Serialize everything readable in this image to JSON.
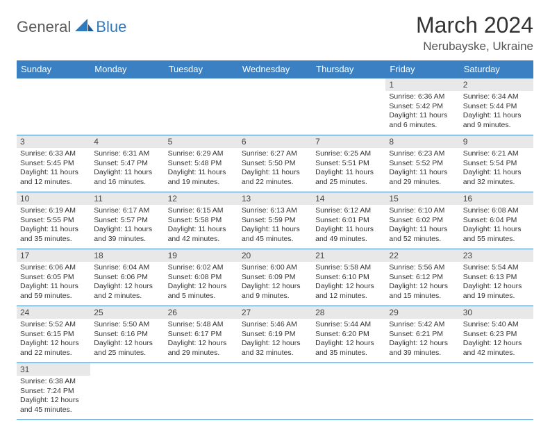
{
  "brand": {
    "part1": "General",
    "part2": "Blue"
  },
  "title": "March 2024",
  "location": "Nerubayske, Ukraine",
  "header_bg": "#3a80c3",
  "header_fg": "#ffffff",
  "daynum_bg": "#e8e8e8",
  "border_color": "#3a80c3",
  "weekdays": [
    "Sunday",
    "Monday",
    "Tuesday",
    "Wednesday",
    "Thursday",
    "Friday",
    "Saturday"
  ],
  "weeks": [
    [
      null,
      null,
      null,
      null,
      null,
      {
        "n": "1",
        "sr": "Sunrise: 6:36 AM",
        "ss": "Sunset: 5:42 PM",
        "dl1": "Daylight: 11 hours",
        "dl2": "and 6 minutes."
      },
      {
        "n": "2",
        "sr": "Sunrise: 6:34 AM",
        "ss": "Sunset: 5:44 PM",
        "dl1": "Daylight: 11 hours",
        "dl2": "and 9 minutes."
      }
    ],
    [
      {
        "n": "3",
        "sr": "Sunrise: 6:33 AM",
        "ss": "Sunset: 5:45 PM",
        "dl1": "Daylight: 11 hours",
        "dl2": "and 12 minutes."
      },
      {
        "n": "4",
        "sr": "Sunrise: 6:31 AM",
        "ss": "Sunset: 5:47 PM",
        "dl1": "Daylight: 11 hours",
        "dl2": "and 16 minutes."
      },
      {
        "n": "5",
        "sr": "Sunrise: 6:29 AM",
        "ss": "Sunset: 5:48 PM",
        "dl1": "Daylight: 11 hours",
        "dl2": "and 19 minutes."
      },
      {
        "n": "6",
        "sr": "Sunrise: 6:27 AM",
        "ss": "Sunset: 5:50 PM",
        "dl1": "Daylight: 11 hours",
        "dl2": "and 22 minutes."
      },
      {
        "n": "7",
        "sr": "Sunrise: 6:25 AM",
        "ss": "Sunset: 5:51 PM",
        "dl1": "Daylight: 11 hours",
        "dl2": "and 25 minutes."
      },
      {
        "n": "8",
        "sr": "Sunrise: 6:23 AM",
        "ss": "Sunset: 5:52 PM",
        "dl1": "Daylight: 11 hours",
        "dl2": "and 29 minutes."
      },
      {
        "n": "9",
        "sr": "Sunrise: 6:21 AM",
        "ss": "Sunset: 5:54 PM",
        "dl1": "Daylight: 11 hours",
        "dl2": "and 32 minutes."
      }
    ],
    [
      {
        "n": "10",
        "sr": "Sunrise: 6:19 AM",
        "ss": "Sunset: 5:55 PM",
        "dl1": "Daylight: 11 hours",
        "dl2": "and 35 minutes."
      },
      {
        "n": "11",
        "sr": "Sunrise: 6:17 AM",
        "ss": "Sunset: 5:57 PM",
        "dl1": "Daylight: 11 hours",
        "dl2": "and 39 minutes."
      },
      {
        "n": "12",
        "sr": "Sunrise: 6:15 AM",
        "ss": "Sunset: 5:58 PM",
        "dl1": "Daylight: 11 hours",
        "dl2": "and 42 minutes."
      },
      {
        "n": "13",
        "sr": "Sunrise: 6:13 AM",
        "ss": "Sunset: 5:59 PM",
        "dl1": "Daylight: 11 hours",
        "dl2": "and 45 minutes."
      },
      {
        "n": "14",
        "sr": "Sunrise: 6:12 AM",
        "ss": "Sunset: 6:01 PM",
        "dl1": "Daylight: 11 hours",
        "dl2": "and 49 minutes."
      },
      {
        "n": "15",
        "sr": "Sunrise: 6:10 AM",
        "ss": "Sunset: 6:02 PM",
        "dl1": "Daylight: 11 hours",
        "dl2": "and 52 minutes."
      },
      {
        "n": "16",
        "sr": "Sunrise: 6:08 AM",
        "ss": "Sunset: 6:04 PM",
        "dl1": "Daylight: 11 hours",
        "dl2": "and 55 minutes."
      }
    ],
    [
      {
        "n": "17",
        "sr": "Sunrise: 6:06 AM",
        "ss": "Sunset: 6:05 PM",
        "dl1": "Daylight: 11 hours",
        "dl2": "and 59 minutes."
      },
      {
        "n": "18",
        "sr": "Sunrise: 6:04 AM",
        "ss": "Sunset: 6:06 PM",
        "dl1": "Daylight: 12 hours",
        "dl2": "and 2 minutes."
      },
      {
        "n": "19",
        "sr": "Sunrise: 6:02 AM",
        "ss": "Sunset: 6:08 PM",
        "dl1": "Daylight: 12 hours",
        "dl2": "and 5 minutes."
      },
      {
        "n": "20",
        "sr": "Sunrise: 6:00 AM",
        "ss": "Sunset: 6:09 PM",
        "dl1": "Daylight: 12 hours",
        "dl2": "and 9 minutes."
      },
      {
        "n": "21",
        "sr": "Sunrise: 5:58 AM",
        "ss": "Sunset: 6:10 PM",
        "dl1": "Daylight: 12 hours",
        "dl2": "and 12 minutes."
      },
      {
        "n": "22",
        "sr": "Sunrise: 5:56 AM",
        "ss": "Sunset: 6:12 PM",
        "dl1": "Daylight: 12 hours",
        "dl2": "and 15 minutes."
      },
      {
        "n": "23",
        "sr": "Sunrise: 5:54 AM",
        "ss": "Sunset: 6:13 PM",
        "dl1": "Daylight: 12 hours",
        "dl2": "and 19 minutes."
      }
    ],
    [
      {
        "n": "24",
        "sr": "Sunrise: 5:52 AM",
        "ss": "Sunset: 6:15 PM",
        "dl1": "Daylight: 12 hours",
        "dl2": "and 22 minutes."
      },
      {
        "n": "25",
        "sr": "Sunrise: 5:50 AM",
        "ss": "Sunset: 6:16 PM",
        "dl1": "Daylight: 12 hours",
        "dl2": "and 25 minutes."
      },
      {
        "n": "26",
        "sr": "Sunrise: 5:48 AM",
        "ss": "Sunset: 6:17 PM",
        "dl1": "Daylight: 12 hours",
        "dl2": "and 29 minutes."
      },
      {
        "n": "27",
        "sr": "Sunrise: 5:46 AM",
        "ss": "Sunset: 6:19 PM",
        "dl1": "Daylight: 12 hours",
        "dl2": "and 32 minutes."
      },
      {
        "n": "28",
        "sr": "Sunrise: 5:44 AM",
        "ss": "Sunset: 6:20 PM",
        "dl1": "Daylight: 12 hours",
        "dl2": "and 35 minutes."
      },
      {
        "n": "29",
        "sr": "Sunrise: 5:42 AM",
        "ss": "Sunset: 6:21 PM",
        "dl1": "Daylight: 12 hours",
        "dl2": "and 39 minutes."
      },
      {
        "n": "30",
        "sr": "Sunrise: 5:40 AM",
        "ss": "Sunset: 6:23 PM",
        "dl1": "Daylight: 12 hours",
        "dl2": "and 42 minutes."
      }
    ],
    [
      {
        "n": "31",
        "sr": "Sunrise: 6:38 AM",
        "ss": "Sunset: 7:24 PM",
        "dl1": "Daylight: 12 hours",
        "dl2": "and 45 minutes."
      },
      null,
      null,
      null,
      null,
      null,
      null
    ]
  ]
}
